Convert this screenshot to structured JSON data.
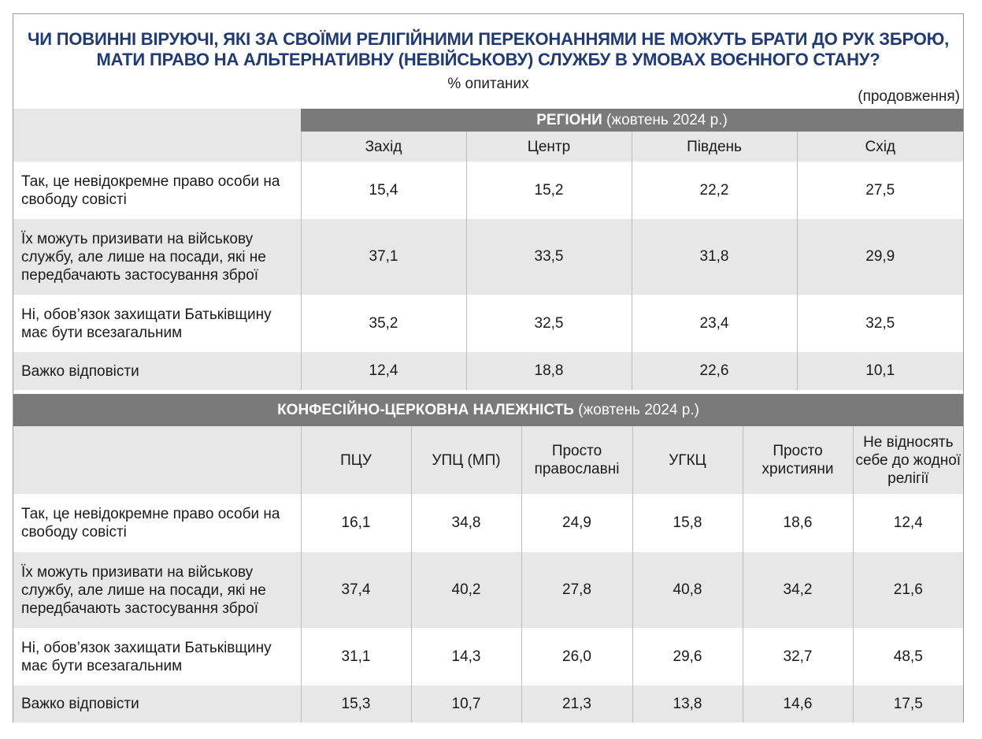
{
  "title": "ЧИ ПОВИННІ ВІРУЮЧІ, ЯКІ ЗА СВОЇМИ РЕЛІГІЙНИМИ ПЕРЕКОНАННЯМИ НЕ МОЖУТЬ БРАТИ ДО РУК ЗБРОЮ, МАТИ ПРАВО НА АЛЬТЕРНАТИВНУ (НЕВІЙСЬКОВУ) СЛУЖБУ В УМОВАХ ВОЄННОГО СТАНУ?",
  "subtitle": "% опитаних",
  "continuation": "(продовження)",
  "regions": {
    "group_bold": "РЕГІОНИ",
    "group_rest": " (жовтень 2024 р.)",
    "columns": [
      "Захід",
      "Центр",
      "Південь",
      "Схід"
    ],
    "rows": [
      {
        "label": "Так, це невідокремне право особи на свободу совісті",
        "values": [
          "15,4",
          "15,2",
          "22,2",
          "27,5"
        ]
      },
      {
        "label": "Їх можуть призивати на військову службу, але лише на посади, які не передбачають застосування зброї",
        "values": [
          "37,1",
          "33,5",
          "31,8",
          "29,9"
        ]
      },
      {
        "label": "Ні, обов’язок захищати Батьківщину має бути всезагальним",
        "values": [
          "35,2",
          "32,5",
          "23,4",
          "32,5"
        ]
      },
      {
        "label": "Важко відповісти",
        "values": [
          "12,4",
          "18,8",
          "22,6",
          "10,1"
        ]
      }
    ]
  },
  "confession": {
    "group_bold": "КОНФЕСІЙНО-ЦЕРКОВНА НАЛЕЖНІСТЬ",
    "group_rest": " (жовтень 2024 р.)",
    "columns": [
      "ПЦУ",
      "УПЦ (МП)",
      "Просто православні",
      "УГКЦ",
      "Просто християни",
      "Не відносять себе до жодної релігії"
    ],
    "rows": [
      {
        "label": "Так, це невідокремне право особи на свободу совісті",
        "values": [
          "16,1",
          "34,8",
          "24,9",
          "15,8",
          "18,6",
          "12,4"
        ]
      },
      {
        "label": "Їх можуть призивати на військову службу, але лише на посади, які не передбачають застосування зброї",
        "values": [
          "37,4",
          "40,2",
          "27,8",
          "40,8",
          "34,2",
          "21,6"
        ]
      },
      {
        "label": "Ні, обов’язок захищати Батьківщину має бути всезагальним",
        "values": [
          "31,1",
          "14,3",
          "26,0",
          "29,6",
          "32,7",
          "48,5"
        ]
      },
      {
        "label": "Важко відповісти",
        "values": [
          "15,3",
          "10,7",
          "21,3",
          "13,8",
          "14,6",
          "17,5"
        ]
      }
    ]
  }
}
